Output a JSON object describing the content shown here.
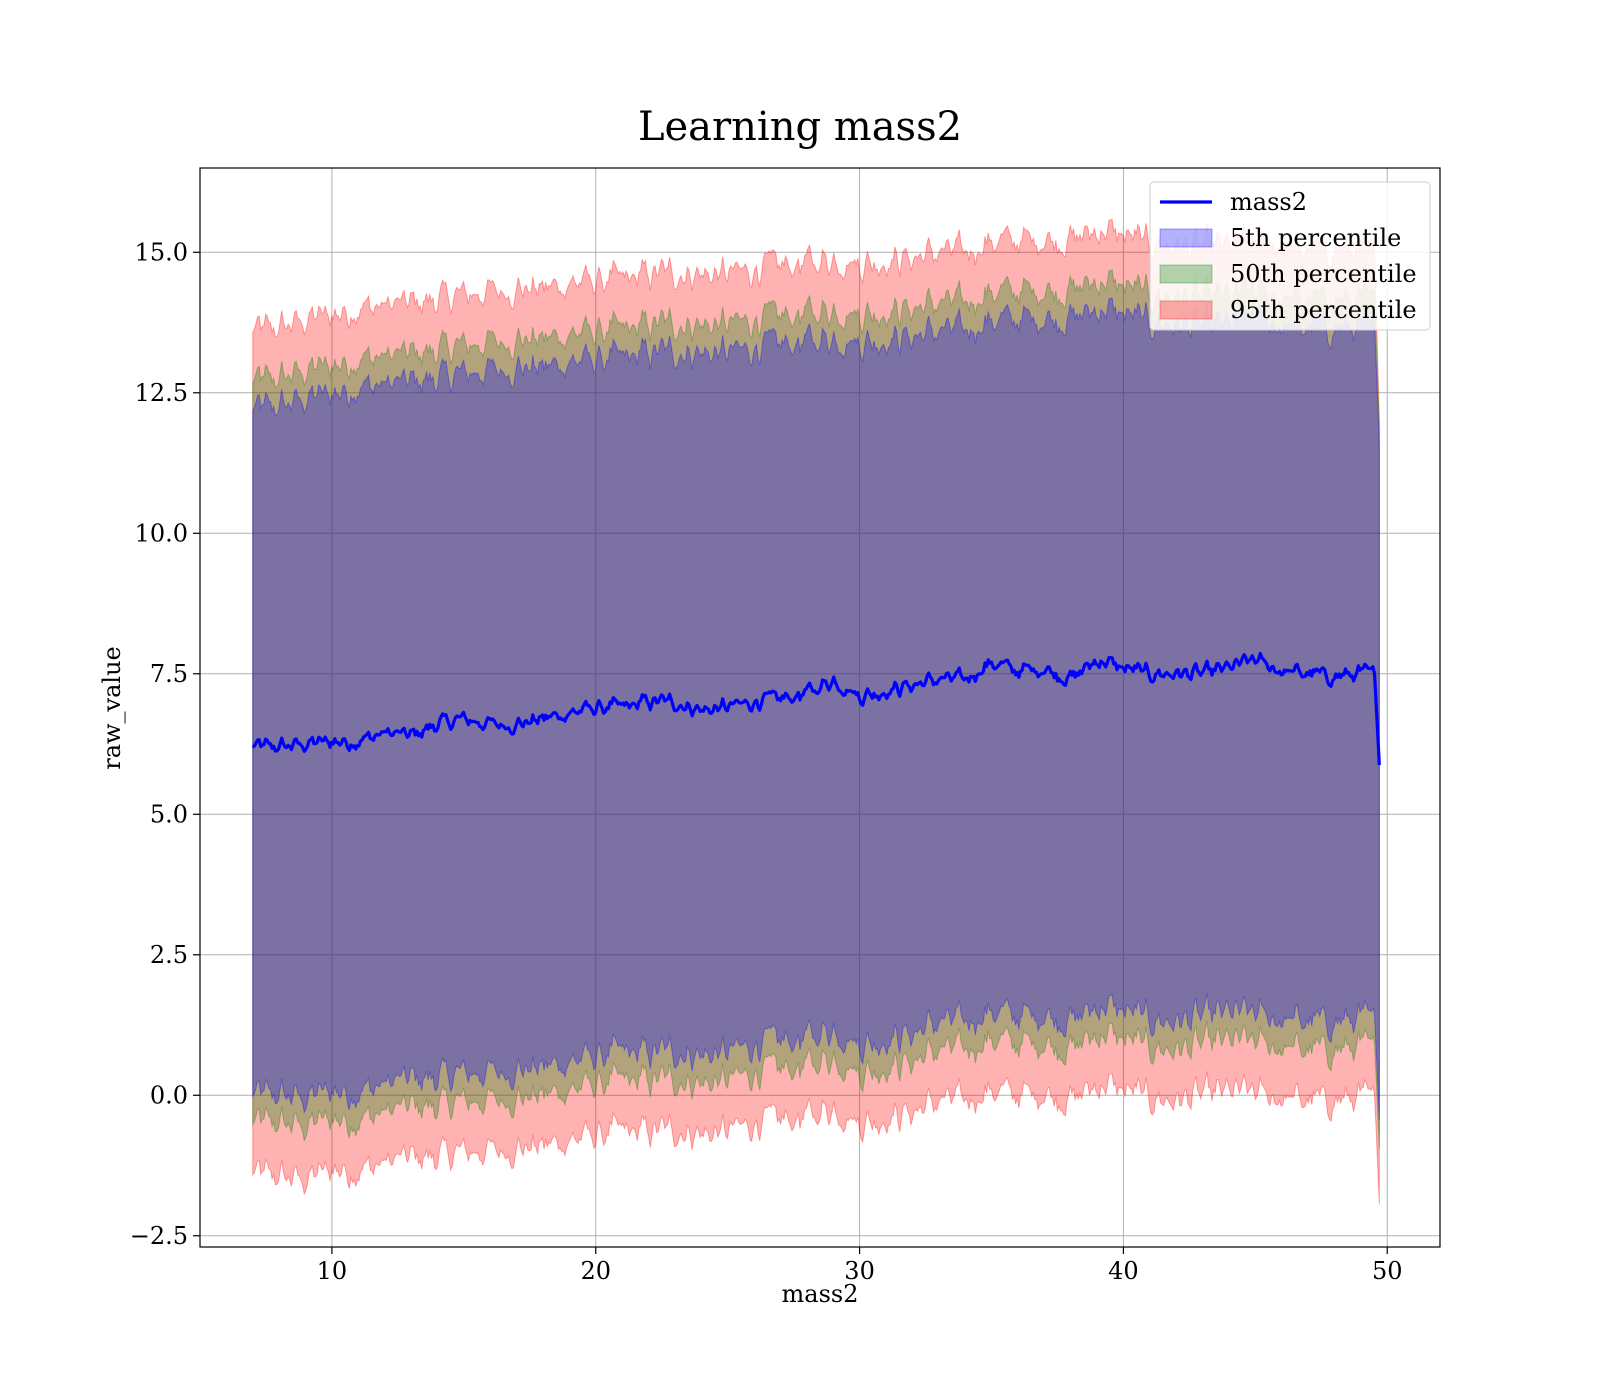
{
  "chart_data": {
    "type": "area",
    "title": "Learning mass2",
    "xlabel": "mass2",
    "ylabel": "raw_value",
    "xlim": [
      5,
      52
    ],
    "ylim": [
      -2.7,
      16.5
    ],
    "x_ticks": [
      10,
      20,
      30,
      40,
      50
    ],
    "x_tick_labels": [
      "10",
      "20",
      "30",
      "40",
      "50"
    ],
    "y_ticks": [
      -2.5,
      0.0,
      2.5,
      5.0,
      7.5,
      10.0,
      12.5,
      15.0
    ],
    "y_tick_labels": [
      "−2.5",
      "0.0",
      "2.5",
      "5.0",
      "7.5",
      "10.0",
      "12.5",
      "15.0"
    ],
    "grid": true,
    "legend_position": "top-right",
    "x_range": [
      7.0,
      49.7
    ],
    "line": {
      "name": "mass2",
      "color": "#0000ff",
      "x": [
        7,
        8,
        9,
        10,
        11,
        12,
        13,
        14,
        15,
        16,
        17,
        18,
        19,
        20,
        21,
        22,
        23,
        24,
        25,
        26,
        27,
        28,
        29,
        30,
        31,
        32,
        33,
        34,
        35,
        36,
        37,
        38,
        39,
        40,
        41,
        42,
        43,
        44,
        45,
        46,
        47,
        48,
        49,
        49.5,
        49.7
      ],
      "y": [
        6.2,
        6.2,
        6.25,
        6.3,
        6.3,
        6.45,
        6.4,
        6.6,
        6.7,
        6.6,
        6.6,
        6.7,
        6.8,
        6.9,
        6.9,
        7.0,
        7.0,
        6.85,
        6.9,
        7.0,
        7.05,
        7.15,
        7.4,
        7.1,
        7.2,
        7.3,
        7.4,
        7.4,
        7.7,
        7.55,
        7.6,
        7.4,
        7.75,
        7.6,
        7.5,
        7.5,
        7.5,
        7.6,
        7.75,
        7.55,
        7.5,
        7.45,
        7.5,
        7.5,
        6.1
      ]
    },
    "bands": [
      {
        "name": "5th percentile",
        "color": "#0000ff",
        "upper": [
          12.2,
          12.25,
          12.4,
          12.5,
          12.6,
          12.65,
          12.7,
          12.75,
          12.85,
          12.9,
          12.95,
          12.95,
          13.05,
          13.1,
          13.1,
          13.2,
          13.25,
          13.2,
          13.2,
          13.3,
          13.35,
          13.4,
          13.5,
          13.4,
          13.45,
          13.5,
          13.6,
          13.6,
          13.8,
          13.8,
          13.85,
          13.8,
          14.0,
          13.9,
          13.75,
          13.7,
          13.7,
          13.7,
          13.8,
          13.7,
          13.65,
          13.65,
          13.65,
          13.6,
          12.0
        ],
        "lower": [
          0.0,
          0.0,
          -0.05,
          0.1,
          0.05,
          0.2,
          0.3,
          0.3,
          0.4,
          0.4,
          0.45,
          0.5,
          0.6,
          0.7,
          0.75,
          0.75,
          0.8,
          0.7,
          0.75,
          0.9,
          0.95,
          1.0,
          1.2,
          0.9,
          1.0,
          1.1,
          1.3,
          1.3,
          1.5,
          1.4,
          1.45,
          1.3,
          1.6,
          1.5,
          1.35,
          1.3,
          1.4,
          1.45,
          1.45,
          1.35,
          1.3,
          1.3,
          1.35,
          1.3,
          0.0
        ]
      },
      {
        "name": "50th percentile",
        "color": "#008000",
        "upper": [
          12.7,
          12.75,
          12.9,
          13.0,
          13.1,
          13.15,
          13.2,
          13.25,
          13.35,
          13.4,
          13.45,
          13.45,
          13.55,
          13.6,
          13.6,
          13.7,
          13.75,
          13.7,
          13.7,
          13.8,
          13.85,
          13.9,
          14.0,
          13.9,
          13.95,
          14.0,
          14.1,
          14.1,
          14.3,
          14.3,
          14.35,
          14.3,
          14.5,
          14.4,
          14.25,
          14.2,
          14.2,
          14.2,
          14.3,
          14.2,
          14.15,
          14.15,
          14.15,
          14.1,
          12.3
        ],
        "lower": [
          -0.5,
          -0.5,
          -0.55,
          -0.4,
          -0.45,
          -0.3,
          -0.2,
          -0.2,
          -0.1,
          -0.1,
          -0.05,
          0.0,
          0.1,
          0.2,
          0.25,
          0.25,
          0.3,
          0.2,
          0.25,
          0.4,
          0.45,
          0.5,
          0.7,
          0.4,
          0.5,
          0.6,
          0.8,
          0.8,
          1.0,
          0.9,
          0.95,
          0.8,
          1.1,
          1.0,
          0.85,
          0.8,
          0.9,
          0.95,
          0.95,
          0.85,
          0.8,
          0.8,
          0.85,
          0.8,
          -0.5
        ]
      },
      {
        "name": "95th percentile",
        "color": "#ff0000",
        "upper": [
          13.6,
          13.65,
          13.8,
          13.9,
          14.0,
          14.05,
          14.1,
          14.15,
          14.25,
          14.3,
          14.35,
          14.35,
          14.45,
          14.5,
          14.5,
          14.6,
          14.65,
          14.6,
          14.6,
          14.7,
          14.75,
          14.8,
          14.9,
          14.8,
          14.85,
          14.9,
          15.0,
          15.0,
          15.2,
          15.2,
          15.25,
          15.2,
          15.4,
          15.3,
          15.15,
          15.1,
          15.1,
          15.1,
          15.2,
          15.1,
          15.05,
          15.05,
          15.05,
          15.0,
          12.5
        ],
        "lower": [
          -1.4,
          -1.45,
          -1.5,
          -1.3,
          -1.35,
          -1.2,
          -1.1,
          -1.1,
          -1.0,
          -1.0,
          -0.95,
          -0.9,
          -0.8,
          -0.7,
          -0.65,
          -0.65,
          -0.6,
          -0.7,
          -0.65,
          -0.5,
          -0.45,
          -0.4,
          -0.2,
          -0.5,
          -0.4,
          -0.3,
          -0.1,
          -0.1,
          0.1,
          0.0,
          0.05,
          -0.1,
          0.2,
          0.1,
          -0.05,
          -0.1,
          0.0,
          0.05,
          0.05,
          -0.05,
          -0.1,
          -0.1,
          -0.05,
          -0.1,
          -1.5
        ]
      }
    ]
  }
}
